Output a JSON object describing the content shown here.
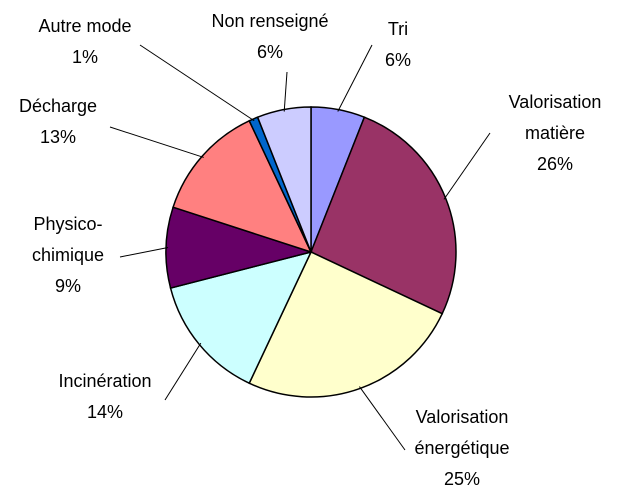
{
  "chart_data": {
    "type": "pie",
    "categories": [
      "Tri",
      "Valorisation\nmatière",
      "Valorisation\nénergétique",
      "Incinération",
      "Physico-\nchimique",
      "Décharge",
      "Autre mode",
      "Non renseigné"
    ],
    "values": [
      6,
      26,
      25,
      14,
      9,
      13,
      1,
      6
    ],
    "value_labels": [
      "6%",
      "26%",
      "25%",
      "14%",
      "9%",
      "13%",
      "1%",
      "6%"
    ],
    "colors": [
      "#9999ff",
      "#993366",
      "#ffffcc",
      "#ccffff",
      "#660066",
      "#ff8080",
      "#0066cc",
      "#ccccff"
    ]
  }
}
